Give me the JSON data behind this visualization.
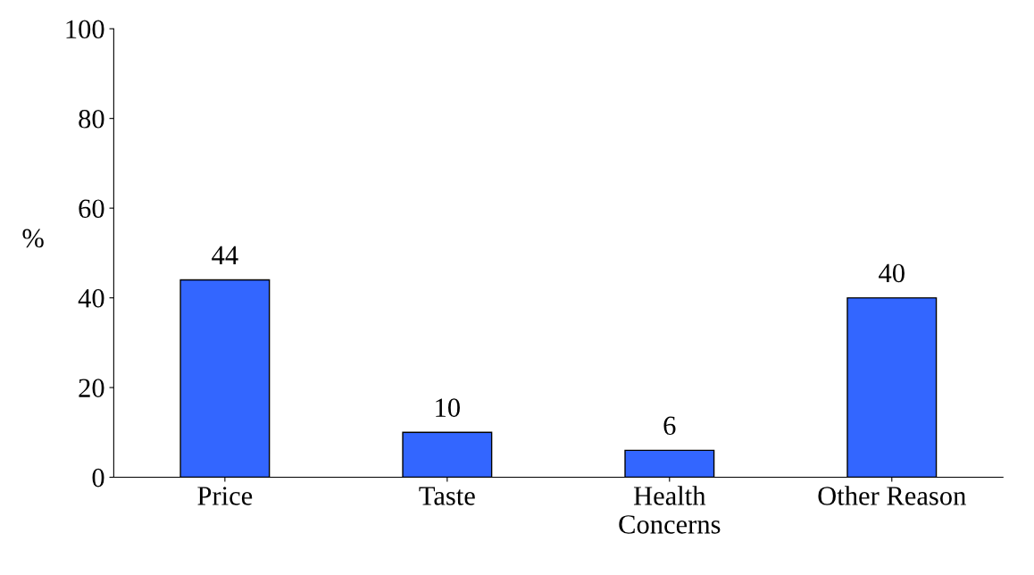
{
  "chart_data": {
    "type": "bar",
    "ylabel": "%",
    "categories": [
      "Price",
      "Taste",
      "Health\nConcerns",
      "Other Reason"
    ],
    "values": [
      44,
      10,
      6,
      40
    ],
    "color": "#3366ff",
    "ylim": [
      0,
      100
    ],
    "yticks": [
      0,
      20,
      40,
      60,
      80,
      100
    ],
    "data_labels": true,
    "grid": false,
    "legend": false
  }
}
